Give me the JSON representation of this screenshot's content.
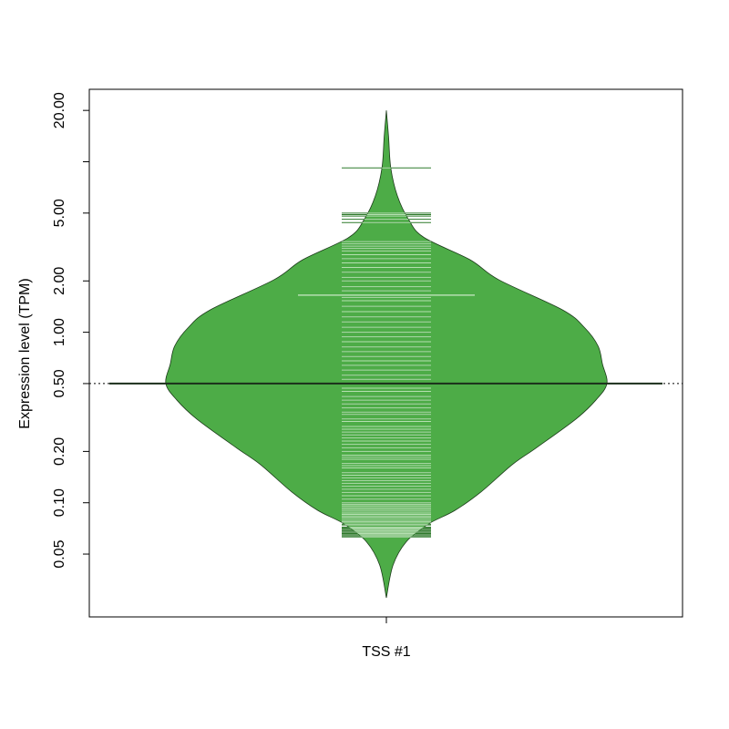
{
  "chart_data": {
    "type": "beanplot",
    "ylabel": "Expression level (TPM)",
    "categories": [
      "TSS #1"
    ],
    "log_y": true,
    "ylim": [
      0.0214,
      26.6
    ],
    "yticks": [
      {
        "value": 0.05,
        "label": "0.05"
      },
      {
        "value": 0.1,
        "label": "0.10"
      },
      {
        "value": 0.2,
        "label": "0.20"
      },
      {
        "value": 0.5,
        "label": "0.50"
      },
      {
        "value": 1,
        "label": "1.00"
      },
      {
        "value": 2,
        "label": "2.00"
      },
      {
        "value": 5,
        "label": "5.00"
      },
      {
        "value": 10,
        "label": null
      },
      {
        "value": 20,
        "label": "20.00"
      }
    ],
    "color": "#4dac47",
    "bean_line_color": "#b5dfb1",
    "density": {
      "y": [
        20,
        14,
        9.2,
        6.3,
        4.6,
        3.6,
        2.66,
        2.03,
        1.35,
        1.06,
        0.83,
        0.65,
        0.5,
        0.4,
        0.31,
        0.21,
        0.167,
        0.116,
        0.09,
        0.075,
        0.059,
        0.043,
        0.0277
      ],
      "width": [
        0,
        0.01,
        0.02,
        0.05,
        0.1,
        0.17,
        0.38,
        0.51,
        0.8,
        0.9,
        0.96,
        0.98,
        1,
        0.95,
        0.86,
        0.68,
        0.57,
        0.43,
        0.31,
        0.19,
        0.09,
        0.03,
        0
      ]
    },
    "overall_line": 0.5,
    "mean_line": 1.65,
    "observations": [
      0.063,
      0.064,
      0.065,
      0.066,
      0.067,
      0.068,
      0.069,
      0.07,
      0.071,
      0.072,
      0.074,
      0.075,
      0.077,
      0.078,
      0.08,
      0.082,
      0.083,
      0.085,
      0.086,
      0.088,
      0.09,
      0.092,
      0.094,
      0.096,
      0.098,
      0.1,
      0.105,
      0.11,
      0.115,
      0.12,
      0.125,
      0.13,
      0.135,
      0.14,
      0.145,
      0.15,
      0.16,
      0.165,
      0.17,
      0.18,
      0.185,
      0.19,
      0.2,
      0.21,
      0.22,
      0.23,
      0.24,
      0.25,
      0.26,
      0.27,
      0.28,
      0.3,
      0.31,
      0.33,
      0.34,
      0.36,
      0.38,
      0.4,
      0.42,
      0.45,
      0.47,
      0.5,
      0.53,
      0.56,
      0.6,
      0.64,
      0.68,
      0.72,
      0.77,
      0.82,
      0.88,
      0.94,
      1.0,
      1.07,
      1.15,
      1.23,
      1.32,
      1.42,
      1.53,
      1.6,
      1.75,
      1.85,
      2.0,
      2.1,
      2.25,
      2.4,
      2.55,
      2.7,
      2.85,
      3.0,
      3.1,
      3.2,
      3.3,
      3.4,
      4.4,
      4.6,
      4.8,
      4.9,
      5.0,
      9.2
    ]
  }
}
